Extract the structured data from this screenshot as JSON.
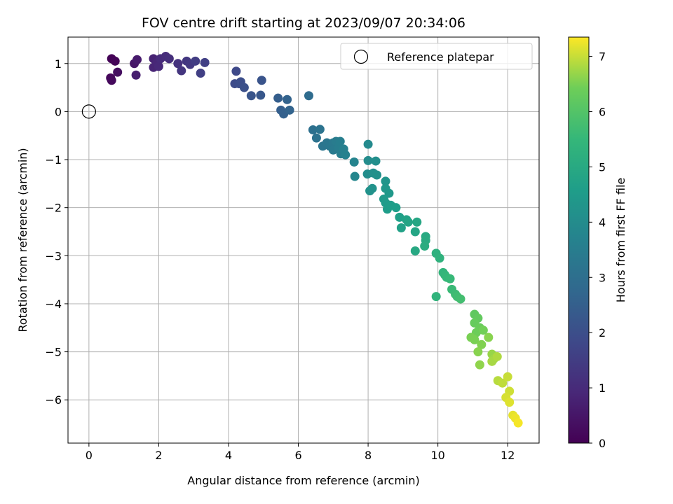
{
  "chart_data": {
    "type": "scatter",
    "title": "FOV centre drift starting at 2023/09/07 20:34:06",
    "xlabel": "Angular distance from reference (arcmin)",
    "ylabel": "Rotation from reference (arcmin)",
    "xlim": [
      -0.6,
      12.9
    ],
    "ylim": [
      -6.9,
      1.55
    ],
    "xticks": [
      0,
      2,
      4,
      6,
      8,
      10,
      12
    ],
    "yticks": [
      1,
      0,
      -1,
      -2,
      -3,
      -4,
      -5,
      -6
    ],
    "grid": true,
    "legend": {
      "placement": "top-right",
      "entries": [
        "Reference platepar"
      ]
    },
    "reference_point": {
      "x": 0,
      "y": 0,
      "label": "Reference platepar"
    },
    "colorbar": {
      "label": "Hours from first FF file",
      "range": [
        0,
        7.35
      ],
      "ticks": [
        0,
        1,
        2,
        3,
        4,
        5,
        6,
        7
      ],
      "colormap": "viridis"
    },
    "points": [
      {
        "x": 0.65,
        "y": 1.1,
        "h": 0.05
      },
      {
        "x": 0.75,
        "y": 1.05,
        "h": 0.1
      },
      {
        "x": 0.62,
        "y": 0.7,
        "h": 0.15
      },
      {
        "x": 0.65,
        "y": 0.65,
        "h": 0.2
      },
      {
        "x": 0.82,
        "y": 0.82,
        "h": 0.3
      },
      {
        "x": 1.3,
        "y": 1.0,
        "h": 0.5
      },
      {
        "x": 1.38,
        "y": 1.08,
        "h": 0.6
      },
      {
        "x": 1.35,
        "y": 0.76,
        "h": 0.7
      },
      {
        "x": 1.85,
        "y": 1.1,
        "h": 0.8
      },
      {
        "x": 1.85,
        "y": 0.92,
        "h": 0.85
      },
      {
        "x": 1.95,
        "y": 1.02,
        "h": 0.9
      },
      {
        "x": 2.0,
        "y": 0.94,
        "h": 0.95
      },
      {
        "x": 2.05,
        "y": 1.1,
        "h": 1.0
      },
      {
        "x": 2.2,
        "y": 1.15,
        "h": 1.05
      },
      {
        "x": 2.3,
        "y": 1.1,
        "h": 1.1
      },
      {
        "x": 2.55,
        "y": 1.0,
        "h": 1.2
      },
      {
        "x": 2.65,
        "y": 0.85,
        "h": 1.3
      },
      {
        "x": 2.8,
        "y": 1.05,
        "h": 1.35
      },
      {
        "x": 2.9,
        "y": 0.98,
        "h": 1.4
      },
      {
        "x": 3.05,
        "y": 1.05,
        "h": 1.5
      },
      {
        "x": 3.2,
        "y": 0.8,
        "h": 1.55
      },
      {
        "x": 3.32,
        "y": 1.02,
        "h": 1.6
      },
      {
        "x": 4.22,
        "y": 0.84,
        "h": 1.85
      },
      {
        "x": 4.18,
        "y": 0.58,
        "h": 1.9
      },
      {
        "x": 4.3,
        "y": 0.58,
        "h": 1.95
      },
      {
        "x": 4.35,
        "y": 0.62,
        "h": 2.0
      },
      {
        "x": 4.45,
        "y": 0.5,
        "h": 2.05
      },
      {
        "x": 4.95,
        "y": 0.65,
        "h": 2.15
      },
      {
        "x": 4.65,
        "y": 0.33,
        "h": 2.2
      },
      {
        "x": 4.92,
        "y": 0.34,
        "h": 2.25
      },
      {
        "x": 5.42,
        "y": 0.28,
        "h": 2.45
      },
      {
        "x": 5.5,
        "y": 0.03,
        "h": 2.5
      },
      {
        "x": 5.58,
        "y": -0.05,
        "h": 2.55
      },
      {
        "x": 5.68,
        "y": 0.25,
        "h": 2.6
      },
      {
        "x": 5.75,
        "y": 0.03,
        "h": 2.65
      },
      {
        "x": 6.3,
        "y": 0.33,
        "h": 2.9
      },
      {
        "x": 6.42,
        "y": -0.38,
        "h": 3.05
      },
      {
        "x": 6.52,
        "y": -0.55,
        "h": 3.1
      },
      {
        "x": 6.62,
        "y": -0.37,
        "h": 3.15
      },
      {
        "x": 6.7,
        "y": -0.72,
        "h": 3.2
      },
      {
        "x": 6.82,
        "y": -0.65,
        "h": 3.25
      },
      {
        "x": 6.9,
        "y": -0.72,
        "h": 3.3
      },
      {
        "x": 7.0,
        "y": -0.65,
        "h": 3.35
      },
      {
        "x": 7.0,
        "y": -0.8,
        "h": 3.4
      },
      {
        "x": 7.08,
        "y": -0.62,
        "h": 3.45
      },
      {
        "x": 7.15,
        "y": -0.75,
        "h": 3.5
      },
      {
        "x": 7.2,
        "y": -0.62,
        "h": 3.55
      },
      {
        "x": 7.22,
        "y": -0.88,
        "h": 3.55
      },
      {
        "x": 7.3,
        "y": -0.78,
        "h": 3.6
      },
      {
        "x": 7.35,
        "y": -0.9,
        "h": 3.65
      },
      {
        "x": 7.6,
        "y": -1.05,
        "h": 3.75
      },
      {
        "x": 7.62,
        "y": -1.35,
        "h": 3.8
      },
      {
        "x": 8.0,
        "y": -0.68,
        "h": 3.95
      },
      {
        "x": 8.0,
        "y": -1.02,
        "h": 4.0
      },
      {
        "x": 7.98,
        "y": -1.3,
        "h": 4.05
      },
      {
        "x": 8.15,
        "y": -1.28,
        "h": 4.1
      },
      {
        "x": 8.22,
        "y": -1.03,
        "h": 4.1
      },
      {
        "x": 8.25,
        "y": -1.32,
        "h": 4.15
      },
      {
        "x": 8.05,
        "y": -1.65,
        "h": 4.2
      },
      {
        "x": 8.12,
        "y": -1.6,
        "h": 4.2
      },
      {
        "x": 8.5,
        "y": -1.45,
        "h": 4.3
      },
      {
        "x": 8.5,
        "y": -1.6,
        "h": 4.35
      },
      {
        "x": 8.6,
        "y": -1.7,
        "h": 4.4
      },
      {
        "x": 8.45,
        "y": -1.82,
        "h": 4.45
      },
      {
        "x": 8.5,
        "y": -1.9,
        "h": 4.5
      },
      {
        "x": 8.55,
        "y": -2.03,
        "h": 4.55
      },
      {
        "x": 8.65,
        "y": -1.95,
        "h": 4.55
      },
      {
        "x": 8.8,
        "y": -2.0,
        "h": 4.6
      },
      {
        "x": 8.9,
        "y": -2.2,
        "h": 4.65
      },
      {
        "x": 8.95,
        "y": -2.42,
        "h": 4.7
      },
      {
        "x": 9.1,
        "y": -2.25,
        "h": 4.75
      },
      {
        "x": 9.15,
        "y": -2.3,
        "h": 4.8
      },
      {
        "x": 9.35,
        "y": -2.5,
        "h": 4.85
      },
      {
        "x": 9.4,
        "y": -2.3,
        "h": 4.9
      },
      {
        "x": 9.35,
        "y": -2.9,
        "h": 4.95
      },
      {
        "x": 9.65,
        "y": -2.6,
        "h": 5.0
      },
      {
        "x": 9.65,
        "y": -2.68,
        "h": 5.05
      },
      {
        "x": 9.62,
        "y": -2.8,
        "h": 5.1
      },
      {
        "x": 9.95,
        "y": -2.95,
        "h": 5.25
      },
      {
        "x": 10.05,
        "y": -3.05,
        "h": 5.3
      },
      {
        "x": 9.95,
        "y": -3.85,
        "h": 5.35
      },
      {
        "x": 10.15,
        "y": -3.35,
        "h": 5.4
      },
      {
        "x": 10.2,
        "y": -3.4,
        "h": 5.45
      },
      {
        "x": 10.25,
        "y": -3.45,
        "h": 5.5
      },
      {
        "x": 10.35,
        "y": -3.48,
        "h": 5.55
      },
      {
        "x": 10.4,
        "y": -3.7,
        "h": 5.6
      },
      {
        "x": 10.5,
        "y": -3.8,
        "h": 5.65
      },
      {
        "x": 10.55,
        "y": -3.85,
        "h": 5.7
      },
      {
        "x": 10.65,
        "y": -3.9,
        "h": 5.75
      },
      {
        "x": 11.05,
        "y": -4.22,
        "h": 6.2
      },
      {
        "x": 11.15,
        "y": -4.3,
        "h": 6.25
      },
      {
        "x": 11.05,
        "y": -4.4,
        "h": 6.3
      },
      {
        "x": 11.2,
        "y": -4.5,
        "h": 6.35
      },
      {
        "x": 11.1,
        "y": -4.6,
        "h": 6.4
      },
      {
        "x": 11.3,
        "y": -4.55,
        "h": 6.45
      },
      {
        "x": 10.95,
        "y": -4.7,
        "h": 6.5
      },
      {
        "x": 11.05,
        "y": -4.75,
        "h": 6.5
      },
      {
        "x": 11.25,
        "y": -4.85,
        "h": 6.55
      },
      {
        "x": 11.15,
        "y": -5.0,
        "h": 6.6
      },
      {
        "x": 11.45,
        "y": -4.7,
        "h": 6.6
      },
      {
        "x": 11.2,
        "y": -5.27,
        "h": 6.65
      },
      {
        "x": 11.55,
        "y": -5.05,
        "h": 6.7
      },
      {
        "x": 11.6,
        "y": -5.15,
        "h": 6.75
      },
      {
        "x": 11.55,
        "y": -5.2,
        "h": 6.8
      },
      {
        "x": 11.7,
        "y": -5.1,
        "h": 6.85
      },
      {
        "x": 11.72,
        "y": -5.6,
        "h": 6.9
      },
      {
        "x": 11.85,
        "y": -5.65,
        "h": 6.95
      },
      {
        "x": 12.0,
        "y": -5.52,
        "h": 7.0
      },
      {
        "x": 12.05,
        "y": -5.82,
        "h": 7.05
      },
      {
        "x": 11.95,
        "y": -5.95,
        "h": 7.1
      },
      {
        "x": 12.05,
        "y": -6.05,
        "h": 7.15
      },
      {
        "x": 12.15,
        "y": -6.32,
        "h": 7.2
      },
      {
        "x": 12.22,
        "y": -6.38,
        "h": 7.25
      },
      {
        "x": 12.3,
        "y": -6.48,
        "h": 7.3
      }
    ]
  }
}
